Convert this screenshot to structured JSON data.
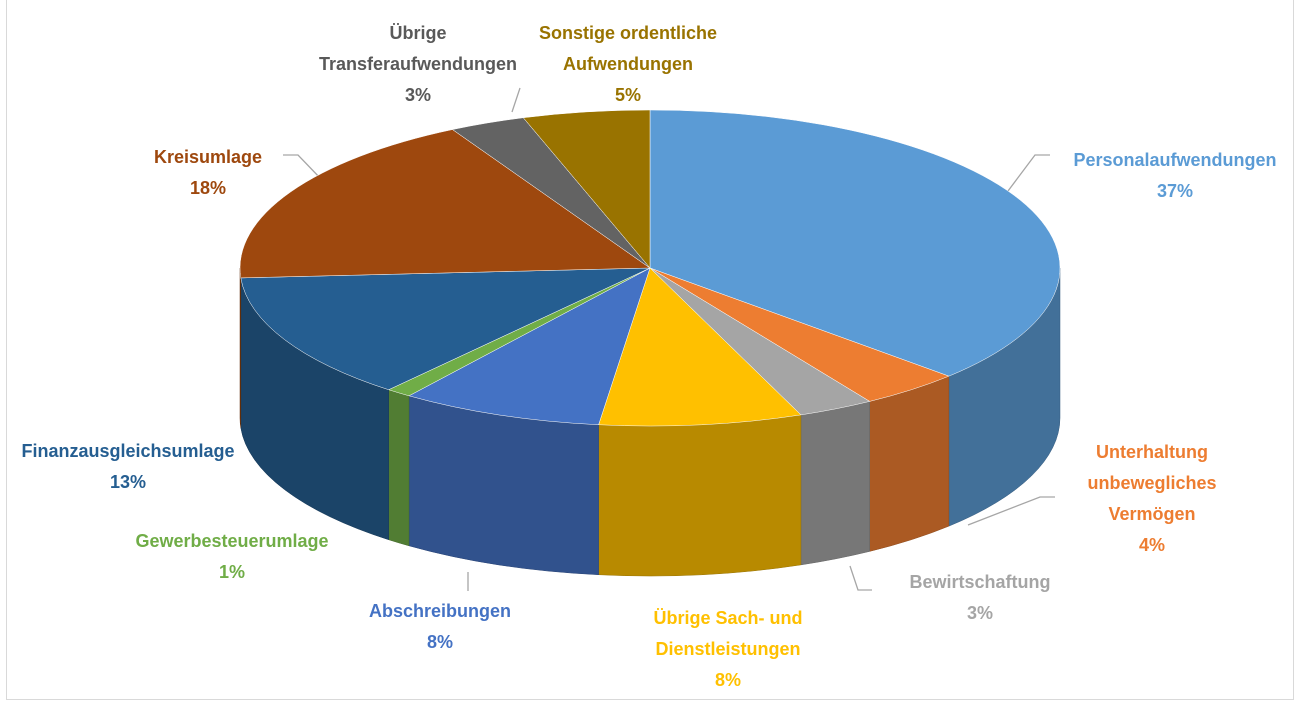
{
  "chart_data": {
    "type": "pie",
    "categories": [
      "Personalaufwendungen",
      "Unterhaltung unbewegliches Vermögen",
      "Bewirtschaftung",
      "Übrige Sach- und Dienstleistungen",
      "Abschreibungen",
      "Gewerbesteuerumlage",
      "Finanzausgleichsumlage",
      "Kreisumlage",
      "Übrige Transferaufwendungen",
      "Sonstige ordentliche Aufwendungen"
    ],
    "values": [
      37,
      4,
      3,
      8,
      8,
      1,
      13,
      18,
      3,
      5
    ],
    "value_labels": [
      "37%",
      "4%",
      "3%",
      "8%",
      "8%",
      "1%",
      "13%",
      "18%",
      "3%",
      "5%"
    ],
    "colors": [
      "#5b9bd5",
      "#ed7d31",
      "#a5a5a5",
      "#ffc000",
      "#4472c4",
      "#70ad47",
      "#255e91",
      "#9e480e",
      "#636363",
      "#997300"
    ]
  }
}
